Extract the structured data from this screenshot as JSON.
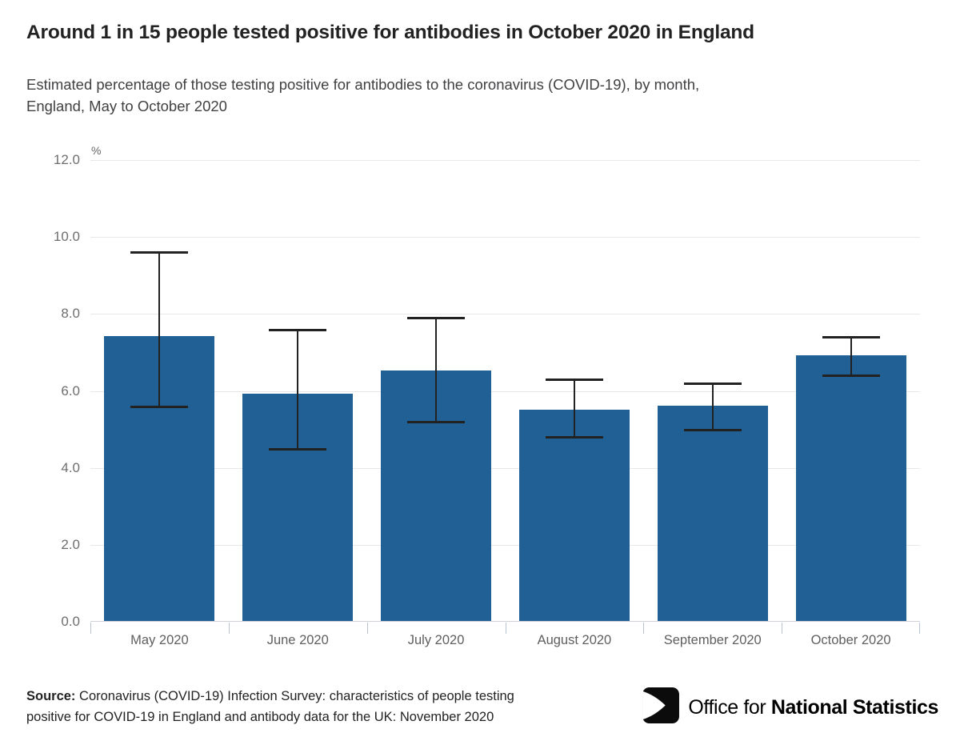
{
  "header": {
    "title": "Around 1 in 15 people tested positive for antibodies in October 2020 in England",
    "subtitle_line1": "Estimated percentage of those testing positive for antibodies to the coronavirus (COVID-19), by month,",
    "subtitle_line2": "England, May to October 2020"
  },
  "chart_data": {
    "type": "bar",
    "title": "Around 1 in 15 people tested positive for antibodies in October 2020 in England",
    "subtitle": "Estimated percentage of those testing positive for antibodies to the coronavirus (COVID-19), by month, England, May to October 2020",
    "categories": [
      "May 2020",
      "June 2020",
      "July 2020",
      "August 2020",
      "September 2020",
      "October 2020"
    ],
    "values": [
      7.4,
      5.9,
      6.5,
      5.5,
      5.6,
      6.9
    ],
    "error_low": [
      5.6,
      4.5,
      5.2,
      4.8,
      5.0,
      6.4
    ],
    "error_high": [
      9.6,
      7.6,
      7.9,
      6.3,
      6.2,
      7.4
    ],
    "xlabel": "",
    "ylabel": "%",
    "unit_label": "%",
    "ylim": [
      0,
      12
    ],
    "ytick_step": 2,
    "ytick_labels": [
      "0.0",
      "2.0",
      "4.0",
      "6.0",
      "8.0",
      "10.0",
      "12.0"
    ],
    "grid": true,
    "legend": "none",
    "bar_color": "#206095",
    "error_color": "#222222",
    "grid_color": "#e8e8e8",
    "tick_color": "#b6c4d4"
  },
  "footer": {
    "source_label": "Source:",
    "source_line1": "Coronavirus (COVID-19) Infection Survey: characteristics of people testing",
    "source_line2": "positive for COVID-19 in England and antibody data for the UK: November 2020",
    "logo_text_regular": "Office for ",
    "logo_text_bold": "National Statistics"
  }
}
